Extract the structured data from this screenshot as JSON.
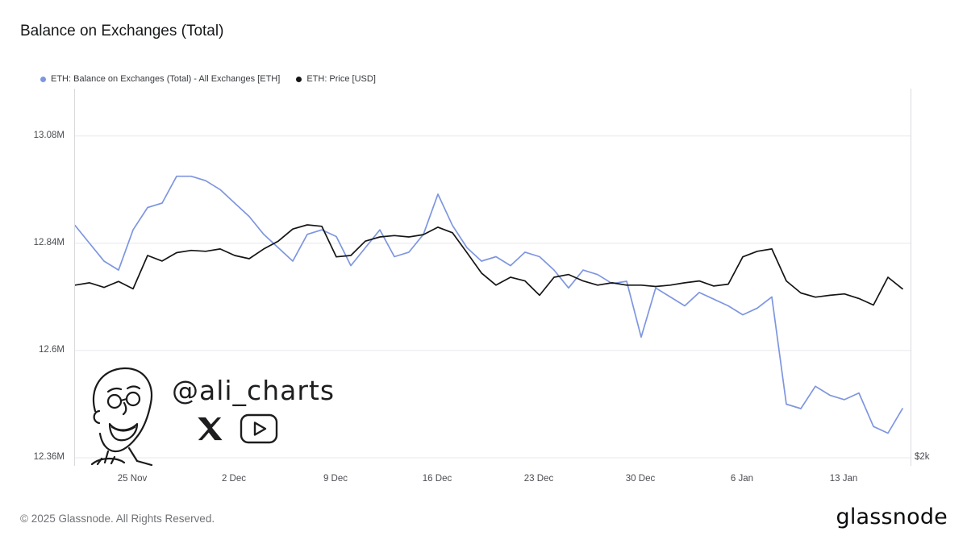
{
  "page": {
    "title": "Balance on Exchanges (Total)",
    "footer": {
      "copyright": "© 2025 Glassnode. All Rights Reserved.",
      "brand": "glassnode"
    }
  },
  "legend": [
    {
      "label": "ETH: Balance on Exchanges (Total) - All Exchanges [ETH]",
      "color": "#7e96e0"
    },
    {
      "label": "ETH: Price [USD]",
      "color": "#151515"
    }
  ],
  "watermark": {
    "handle": "@ali_charts",
    "icons": [
      "x-logo",
      "play-button"
    ]
  },
  "chart_data": {
    "type": "line",
    "title": "Balance on Exchanges (Total)",
    "x": [
      "21 Nov",
      "22 Nov",
      "23 Nov",
      "24 Nov",
      "25 Nov",
      "26 Nov",
      "27 Nov",
      "28 Nov",
      "29 Nov",
      "30 Nov",
      "1 Dec",
      "2 Dec",
      "3 Dec",
      "4 Dec",
      "5 Dec",
      "6 Dec",
      "7 Dec",
      "8 Dec",
      "9 Dec",
      "10 Dec",
      "11 Dec",
      "12 Dec",
      "13 Dec",
      "14 Dec",
      "15 Dec",
      "16 Dec",
      "17 Dec",
      "18 Dec",
      "19 Dec",
      "20 Dec",
      "21 Dec",
      "22 Dec",
      "23 Dec",
      "24 Dec",
      "25 Dec",
      "26 Dec",
      "27 Dec",
      "28 Dec",
      "29 Dec",
      "30 Dec",
      "31 Dec",
      "1 Jan",
      "2 Jan",
      "3 Jan",
      "4 Jan",
      "5 Jan",
      "6 Jan",
      "7 Jan",
      "8 Jan",
      "9 Jan",
      "10 Jan",
      "11 Jan",
      "12 Jan",
      "13 Jan",
      "14 Jan",
      "15 Jan",
      "16 Jan",
      "17 Jan"
    ],
    "x_ticks": [
      "25 Nov",
      "2 Dec",
      "9 Dec",
      "16 Dec",
      "23 Dec",
      "30 Dec",
      "6 Jan",
      "13 Jan"
    ],
    "series": [
      {
        "name": "ETH: Balance on Exchanges (Total) - All Exchanges [ETH]",
        "axis": "left",
        "color": "#7e96e0",
        "unit": "M ETH",
        "values": [
          12.88,
          12.84,
          12.8,
          12.78,
          12.87,
          12.92,
          12.93,
          12.99,
          12.99,
          12.98,
          12.96,
          12.93,
          12.9,
          12.86,
          12.83,
          12.8,
          12.86,
          12.87,
          12.855,
          12.79,
          12.83,
          12.87,
          12.81,
          12.82,
          12.86,
          12.95,
          12.88,
          12.83,
          12.8,
          12.81,
          12.79,
          12.82,
          12.81,
          12.78,
          12.74,
          12.78,
          12.77,
          12.75,
          12.755,
          12.63,
          12.74,
          12.72,
          12.7,
          12.73,
          12.715,
          12.7,
          12.68,
          12.695,
          12.72,
          12.48,
          12.47,
          12.52,
          12.5,
          12.49,
          12.505,
          12.43,
          12.415,
          12.47
        ]
      },
      {
        "name": "ETH: Price [USD]",
        "axis": "right",
        "color": "#151515",
        "unit": "USD",
        "values": [
          3350,
          3375,
          3325,
          3390,
          3310,
          3670,
          3610,
          3700,
          3725,
          3715,
          3740,
          3670,
          3635,
          3740,
          3825,
          3955,
          4000,
          3985,
          3655,
          3670,
          3825,
          3870,
          3885,
          3870,
          3895,
          3975,
          3915,
          3700,
          3480,
          3350,
          3435,
          3395,
          3240,
          3435,
          3465,
          3395,
          3350,
          3375,
          3350,
          3350,
          3335,
          3350,
          3375,
          3395,
          3340,
          3360,
          3655,
          3715,
          3740,
          3395,
          3265,
          3220,
          3240,
          3255,
          3205,
          3135,
          3435,
          3310
        ]
      }
    ],
    "left_axis": {
      "ticks": [
        "13.08M",
        "12.84M",
        "12.6M",
        "12.36M"
      ],
      "tick_values": [
        13.08,
        12.84,
        12.6,
        12.36
      ],
      "range": [
        12.342,
        13.186
      ],
      "unit": "M ETH"
    },
    "right_axis": {
      "ticks": [
        "$2k"
      ],
      "range": [
        1400,
        5470
      ],
      "unit": "USD"
    },
    "grid": "horizontal",
    "legend_position": "top-left"
  }
}
